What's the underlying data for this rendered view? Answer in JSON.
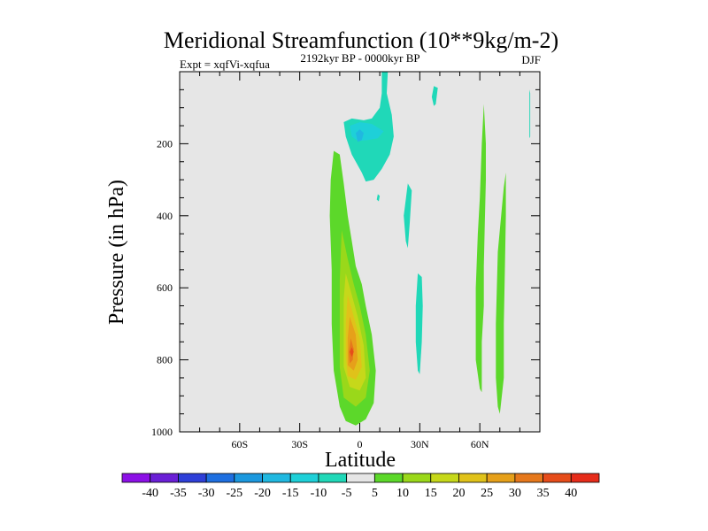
{
  "chart_data": {
    "type": "heatmap",
    "title": "Meridional Streamfunction (10**9kg/m-2)",
    "subtitle_left": "Expt = xqfVi-xqfua",
    "subtitle_center": "2192kyr BP - 0000kyr BP",
    "subtitle_right": "DJF",
    "xlabel": "Latitude",
    "ylabel": "Pressure (in hPa)",
    "xlim": [
      -90,
      90
    ],
    "ylim": [
      0,
      1000
    ],
    "x_ticks": [
      {
        "value": -60,
        "label": "60S"
      },
      {
        "value": -30,
        "label": "30S"
      },
      {
        "value": 0,
        "label": "0"
      },
      {
        "value": 30,
        "label": "30N"
      },
      {
        "value": 60,
        "label": "60N"
      }
    ],
    "y_ticks": [
      {
        "value": 200,
        "label": "200"
      },
      {
        "value": 400,
        "label": "400"
      },
      {
        "value": 600,
        "label": "600"
      },
      {
        "value": 800,
        "label": "800"
      },
      {
        "value": 1000,
        "label": "1000"
      }
    ],
    "background_color": "#e6e6e6",
    "colorbar": {
      "labels": [
        "-40",
        "-35",
        "-30",
        "-25",
        "-20",
        "-15",
        "-10",
        "-5",
        "5",
        "10",
        "15",
        "20",
        "25",
        "30",
        "35",
        "40"
      ],
      "colors": [
        "#8c10e6",
        "#6a1fd6",
        "#2e3fd8",
        "#1e6fe0",
        "#1c98de",
        "#20b8e0",
        "#1ed0d8",
        "#20d8b8",
        "#e6e6e6",
        "#5cd82a",
        "#9ad81a",
        "#c6d81a",
        "#e0c21a",
        "#e6a01a",
        "#e6781c",
        "#e64c1a",
        "#e62c1a"
      ]
    },
    "regions": [
      {
        "name": "tropical-positive-cell-5",
        "level": 5,
        "points": [
          [
            -13,
            220
          ],
          [
            -10,
            230
          ],
          [
            -8,
            310
          ],
          [
            -6,
            400
          ],
          [
            -4,
            470
          ],
          [
            -2,
            540
          ],
          [
            1,
            590
          ],
          [
            3,
            650
          ],
          [
            6,
            730
          ],
          [
            8,
            830
          ],
          [
            7,
            920
          ],
          [
            3,
            965
          ],
          [
            -2,
            982
          ],
          [
            -7,
            970
          ],
          [
            -10,
            930
          ],
          [
            -13,
            830
          ],
          [
            -14,
            700
          ],
          [
            -14,
            550
          ],
          [
            -15,
            400
          ],
          [
            -14.5,
            300
          ]
        ]
      },
      {
        "name": "tropical-positive-cell-10",
        "level": 10,
        "points": [
          [
            -9,
            440
          ],
          [
            -6,
            520
          ],
          [
            -3,
            590
          ],
          [
            0,
            650
          ],
          [
            3,
            730
          ],
          [
            5,
            830
          ],
          [
            3,
            905
          ],
          [
            -2,
            930
          ],
          [
            -8,
            905
          ],
          [
            -10,
            820
          ],
          [
            -10,
            700
          ],
          [
            -10,
            580
          ]
        ]
      },
      {
        "name": "tropical-positive-cell-15",
        "level": 15,
        "points": [
          [
            -7,
            560
          ],
          [
            -4,
            620
          ],
          [
            -1,
            680
          ],
          [
            2,
            760
          ],
          [
            3,
            850
          ],
          [
            0,
            885
          ],
          [
            -5,
            875
          ],
          [
            -8,
            820
          ],
          [
            -8,
            720
          ],
          [
            -8,
            630
          ]
        ]
      },
      {
        "name": "tropical-positive-cell-20",
        "level": 20,
        "points": [
          [
            -6,
            620
          ],
          [
            -3,
            680
          ],
          [
            0,
            740
          ],
          [
            1,
            820
          ],
          [
            -2,
            855
          ],
          [
            -6,
            845
          ],
          [
            -7,
            790
          ],
          [
            -7,
            700
          ]
        ]
      },
      {
        "name": "tropical-positive-cell-25",
        "level": 25,
        "points": [
          [
            -5,
            680
          ],
          [
            -2,
            730
          ],
          [
            -1,
            800
          ],
          [
            -3,
            830
          ],
          [
            -6,
            815
          ],
          [
            -6,
            740
          ]
        ]
      },
      {
        "name": "tropical-positive-cell-30",
        "level": 30,
        "points": [
          [
            -4.5,
            740
          ],
          [
            -3,
            770
          ],
          [
            -3.5,
            800
          ],
          [
            -5,
            810
          ],
          [
            -5.5,
            780
          ]
        ]
      },
      {
        "name": "tropical-positive-cell-35",
        "level": 35,
        "points": [
          [
            -4,
            765
          ],
          [
            -3,
            778
          ],
          [
            -4,
            792
          ],
          [
            -5,
            778
          ]
        ]
      },
      {
        "name": "upper-negative-cell-5",
        "level": -5,
        "points": [
          [
            11,
            0
          ],
          [
            14,
            0
          ],
          [
            13.5,
            60
          ],
          [
            16,
            120
          ],
          [
            17,
            180
          ],
          [
            15,
            230
          ],
          [
            11,
            270
          ],
          [
            7,
            300
          ],
          [
            3,
            305
          ],
          [
            1,
            280
          ],
          [
            -4,
            230
          ],
          [
            -7,
            180
          ],
          [
            -8,
            140
          ],
          [
            -4,
            130
          ],
          [
            2,
            135
          ],
          [
            6,
            130
          ],
          [
            10,
            100
          ],
          [
            11,
            60
          ]
        ]
      },
      {
        "name": "upper-negative-cell-10",
        "level": -10,
        "points": [
          [
            -5,
            150
          ],
          [
            0,
            140
          ],
          [
            6,
            145
          ],
          [
            12,
            165
          ],
          [
            9,
            185
          ],
          [
            4,
            190
          ],
          [
            -1,
            192
          ],
          [
            -4,
            180
          ]
        ]
      },
      {
        "name": "upper-negative-cell-15",
        "level": -15,
        "points": [
          [
            -2,
            170
          ],
          [
            0,
            160
          ],
          [
            2,
            170
          ],
          [
            1,
            190
          ],
          [
            -1,
            195
          ]
        ]
      },
      {
        "name": "neg-patch-35N-top",
        "level": -5,
        "points": [
          [
            37,
            40
          ],
          [
            39,
            45
          ],
          [
            38,
            90
          ],
          [
            37,
            95
          ],
          [
            36,
            70
          ]
        ]
      },
      {
        "name": "neg-patch-25N-upper",
        "level": -5,
        "points": [
          [
            24,
            310
          ],
          [
            26,
            330
          ],
          [
            25,
            420
          ],
          [
            24,
            490
          ],
          [
            23,
            470
          ],
          [
            22,
            400
          ]
        ]
      },
      {
        "name": "neg-patch-30N-mid",
        "level": -5,
        "points": [
          [
            29,
            560
          ],
          [
            31,
            570
          ],
          [
            31.5,
            650
          ],
          [
            31,
            750
          ],
          [
            30,
            840
          ],
          [
            29,
            830
          ],
          [
            28,
            750
          ],
          [
            28,
            650
          ]
        ]
      },
      {
        "name": "small-neg-patch-10N",
        "level": -5,
        "points": [
          [
            9,
            340
          ],
          [
            10,
            345
          ],
          [
            9.5,
            360
          ],
          [
            8.5,
            355
          ]
        ]
      },
      {
        "name": "pos-band-60N",
        "level": 5,
        "points": [
          [
            62,
            90
          ],
          [
            63,
            200
          ],
          [
            63,
            300
          ],
          [
            62.5,
            420
          ],
          [
            62,
            540
          ],
          [
            62,
            650
          ],
          [
            61,
            750
          ],
          [
            61,
            890
          ],
          [
            60,
            880
          ],
          [
            58,
            800
          ],
          [
            58,
            700
          ],
          [
            58,
            600
          ],
          [
            59,
            450
          ],
          [
            60,
            350
          ],
          [
            61,
            200
          ]
        ]
      },
      {
        "name": "pos-band-72N",
        "level": 5,
        "points": [
          [
            73,
            280
          ],
          [
            73,
            400
          ],
          [
            72.5,
            560
          ],
          [
            72,
            700
          ],
          [
            72,
            850
          ],
          [
            70,
            950
          ],
          [
            69,
            930
          ],
          [
            68,
            850
          ],
          [
            68,
            700
          ],
          [
            69,
            500
          ],
          [
            71,
            380
          ],
          [
            72,
            320
          ]
        ]
      },
      {
        "name": "neg-sliver-85N",
        "level": -5,
        "points": [
          [
            84.8,
            50
          ],
          [
            85.2,
            60
          ],
          [
            85.2,
            180
          ],
          [
            84.8,
            185
          ]
        ]
      }
    ]
  }
}
